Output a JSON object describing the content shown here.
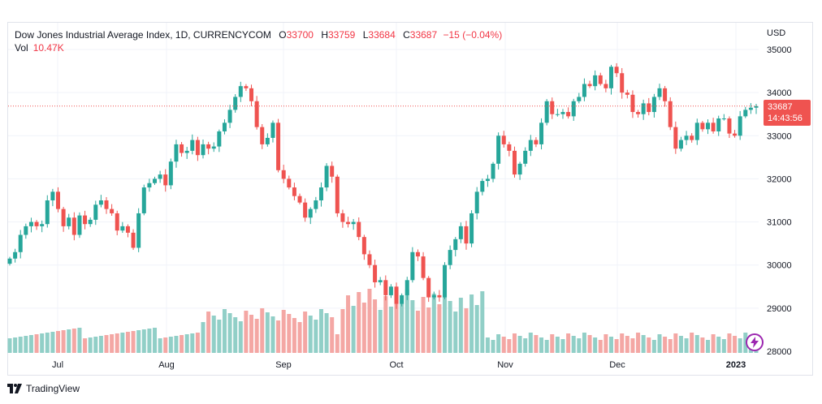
{
  "legend": {
    "title": "Dow Jones Industrial Average Index, 1D, CURRENCYCOM",
    "o_label": "O",
    "o_value": "33700",
    "h_label": "H",
    "h_value": "33759",
    "l_label": "L",
    "l_value": "33684",
    "c_label": "C",
    "c_value": "33687",
    "change": "−15 (−0.04%)",
    "vol_label": "Vol",
    "vol_value": "10.47K"
  },
  "currency": "USD",
  "price_tag": {
    "price": "33687",
    "countdown": "14:43:56"
  },
  "brand": {
    "name": "TradingView"
  },
  "colors": {
    "up": "#26a69a",
    "down": "#ef5350",
    "vol_up": "#91cfc7",
    "vol_down": "#f4a7a4",
    "grid": "#f0f3fa",
    "last_line": "#ef5350"
  },
  "chart_data": {
    "type": "candlestick",
    "title": "Dow Jones Industrial Average Index, 1D, CURRENCYCOM",
    "y_axis": {
      "range": [
        28000,
        35350
      ],
      "ticks": [
        28000,
        29000,
        30000,
        31000,
        32000,
        33000,
        34000,
        35000
      ],
      "position": "right"
    },
    "x_axis": {
      "ticks": [
        "Jul",
        "Aug",
        "Sep",
        "Oct",
        "Nov",
        "Dec",
        "2023"
      ]
    },
    "grid": true,
    "last_price": 33687,
    "closes": [
      30150,
      30300,
      30700,
      30900,
      31000,
      30900,
      30950,
      31500,
      31700,
      31300,
      30900,
      31100,
      30700,
      31150,
      30950,
      31050,
      31400,
      31500,
      31300,
      31200,
      30800,
      30900,
      30750,
      30400,
      31200,
      31800,
      31900,
      32000,
      32100,
      31850,
      32400,
      32800,
      32600,
      32650,
      32900,
      32550,
      32800,
      32700,
      32750,
      33100,
      33300,
      33600,
      33900,
      34150,
      34100,
      33800,
      33200,
      32800,
      32950,
      33300,
      32200,
      32000,
      31800,
      31600,
      31450,
      31100,
      31300,
      31500,
      31800,
      32300,
      32050,
      31200,
      31000,
      30950,
      31000,
      30650,
      30250,
      30000,
      29600,
      29650,
      29300,
      29500,
      29100,
      29300,
      29650,
      30300,
      30200,
      29700,
      29250,
      29300,
      29250,
      30000,
      30350,
      30600,
      30900,
      30500,
      31200,
      31700,
      31950,
      32000,
      32350,
      33000,
      32800,
      32650,
      32100,
      32350,
      32650,
      32900,
      32800,
      33300,
      33800,
      33500,
      33500,
      33550,
      33450,
      33800,
      33900,
      34200,
      34150,
      34400,
      34200,
      34100,
      34600,
      34450,
      34000,
      33950,
      33550,
      33500,
      33750,
      33550,
      33900,
      34100,
      33800,
      33200,
      32700,
      32900,
      33000,
      32900,
      33300,
      33150,
      33300,
      33100,
      33400,
      33400,
      33050,
      33000,
      33450,
      33600,
      33650,
      33687
    ],
    "volume": {
      "range": [
        0,
        2000
      ],
      "note": "volume pane overlaid at bottom of price pane"
    }
  }
}
